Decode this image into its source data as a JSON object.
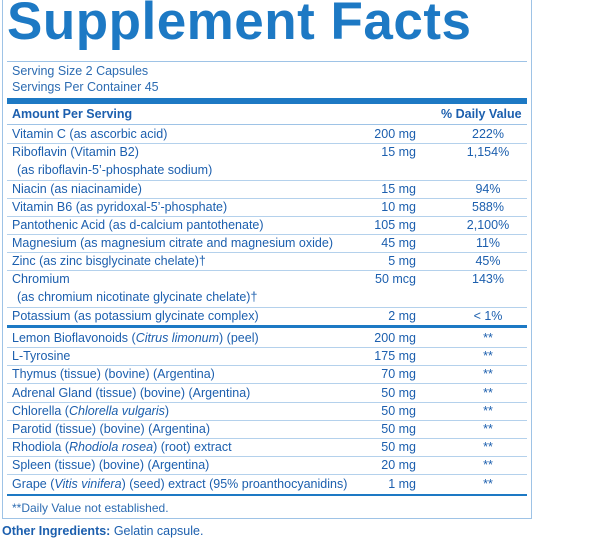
{
  "title": "Supplement Facts",
  "serving_size": "Serving Size 2 Capsules",
  "servings_per_container": "Servings Per Container 45",
  "header": {
    "amount": "Amount Per Serving",
    "dv": "% Daily Value"
  },
  "vitamins": [
    {
      "name": "Vitamin C (as ascorbic acid)",
      "amount": "200 mg",
      "dv": "222%"
    },
    {
      "name": "Riboflavin (Vitamin B2)",
      "sub": "(as riboflavin-5’-phosphate sodium)",
      "amount": "15 mg",
      "dv": "1,154%"
    },
    {
      "name": "Niacin (as niacinamide)",
      "amount": "15 mg",
      "dv": "94%"
    },
    {
      "name": "Vitamin B6 (as pyridoxal-5’-phosphate)",
      "amount": "10 mg",
      "dv": "588%"
    },
    {
      "name": "Pantothenic Acid (as d-calcium pantothenate)",
      "amount": "105 mg",
      "dv": "2,100%"
    },
    {
      "name": "Magnesium (as magnesium citrate and magnesium oxide)",
      "amount": "45 mg",
      "dv": "11%"
    },
    {
      "name": "Zinc (as zinc bisglycinate chelate)†",
      "amount": "5 mg",
      "dv": "45%"
    },
    {
      "name": "Chromium",
      "sub": "(as chromium nicotinate glycinate chelate)†",
      "amount": "50 mcg",
      "dv": "143%"
    },
    {
      "name": "Potassium (as potassium glycinate complex)",
      "amount": "2 mg",
      "dv": "< 1%"
    }
  ],
  "others": [
    {
      "pre": "Lemon Bioflavonoids (",
      "it": "Citrus limonum",
      "post": ") (peel)",
      "amount": "200 mg",
      "dv": "**"
    },
    {
      "pre": "L-Tyrosine",
      "it": "",
      "post": "",
      "amount": "175 mg",
      "dv": "**"
    },
    {
      "pre": "Thymus (tissue) (bovine) (Argentina)",
      "it": "",
      "post": "",
      "amount": "70 mg",
      "dv": "**"
    },
    {
      "pre": "Adrenal Gland (tissue) (bovine) (Argentina)",
      "it": "",
      "post": "",
      "amount": "50 mg",
      "dv": "**"
    },
    {
      "pre": "Chlorella (",
      "it": "Chlorella vulgaris",
      "post": ")",
      "amount": "50 mg",
      "dv": "**"
    },
    {
      "pre": "Parotid (tissue) (bovine) (Argentina)",
      "it": "",
      "post": "",
      "amount": "50 mg",
      "dv": "**"
    },
    {
      "pre": "Rhodiola (",
      "it": "Rhodiola rosea",
      "post": ") (root) extract",
      "amount": "50 mg",
      "dv": "**"
    },
    {
      "pre": "Spleen (tissue) (bovine) (Argentina)",
      "it": "",
      "post": "",
      "amount": "20 mg",
      "dv": "**"
    },
    {
      "pre": "Grape (",
      "it": "Vitis vinifera",
      "post": ") (seed) extract (95% proanthocyanidins)",
      "amount": "1 mg",
      "dv": "**"
    }
  ],
  "footnote": "**Daily Value not established.",
  "other_ingredients_label": "Other Ingredients:",
  "other_ingredients_value": "Gelatin capsule."
}
